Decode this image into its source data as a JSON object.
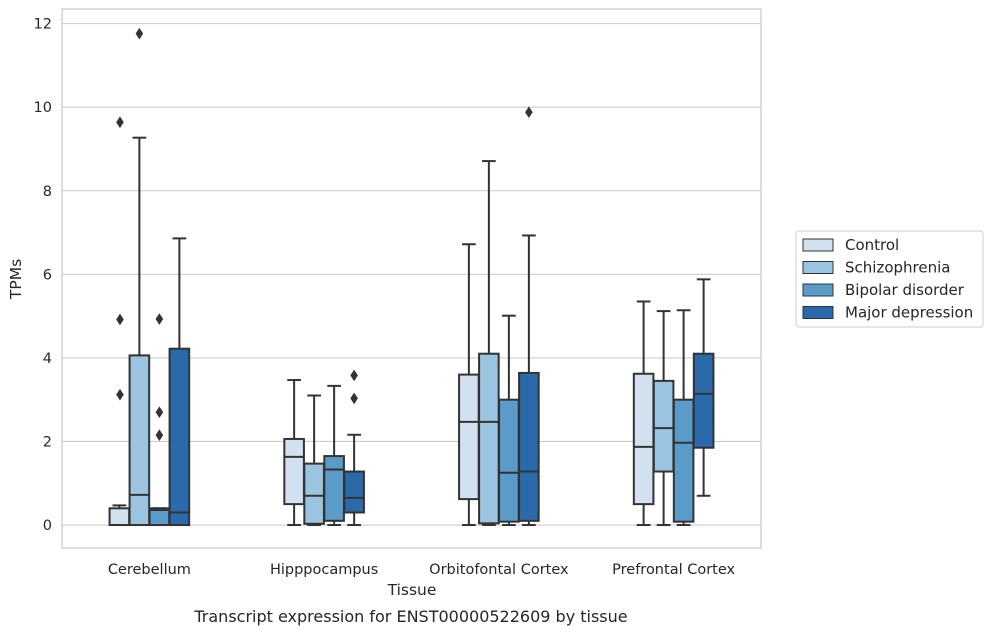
{
  "chart_data": {
    "type": "box",
    "xlabel": "Tissue",
    "ylabel": "TPMs",
    "caption": "Transcript expression for ENST00000522609 by tissue",
    "ylim": [
      -0.55,
      12.35
    ],
    "yticks": [
      0,
      2,
      4,
      6,
      8,
      10,
      12
    ],
    "categories": [
      "Cerebellum",
      "Hipppocampus",
      "Orbitofontal Cortex",
      "Prefrontal Cortex"
    ],
    "grid": "horizontal",
    "legend": {
      "position": "right",
      "frame": true
    },
    "series": [
      {
        "name": "Control",
        "color": "#d1e1f0",
        "boxes": [
          {
            "whisker_low": 0.0,
            "q1": 0.0,
            "median": 0.0,
            "q3": 0.4,
            "whisker_high": 0.47,
            "outliers": []
          },
          {
            "whisker_low": 0.0,
            "q1": 0.5,
            "median": 1.63,
            "q3": 2.06,
            "whisker_high": 3.47,
            "outliers": []
          },
          {
            "whisker_low": 0.0,
            "q1": 0.62,
            "median": 2.47,
            "q3": 3.6,
            "whisker_high": 6.72,
            "outliers": []
          },
          {
            "whisker_low": 0.0,
            "q1": 0.5,
            "median": 1.87,
            "q3": 3.62,
            "whisker_high": 5.35,
            "outliers": []
          }
        ]
      },
      {
        "name": "Schizophrenia",
        "color": "#9ac4df",
        "boxes": [
          {
            "whisker_low": 0.0,
            "q1": 0.0,
            "median": 0.72,
            "q3": 4.06,
            "whisker_high": 9.27,
            "outliers": [
              11.76
            ]
          },
          {
            "whisker_low": 0.0,
            "q1": 0.03,
            "median": 0.7,
            "q3": 1.47,
            "whisker_high": 3.1,
            "outliers": []
          },
          {
            "whisker_low": 0.0,
            "q1": 0.04,
            "median": 2.47,
            "q3": 4.1,
            "whisker_high": 8.71,
            "outliers": []
          },
          {
            "whisker_low": 0.0,
            "q1": 1.28,
            "median": 2.32,
            "q3": 3.45,
            "whisker_high": 5.12,
            "outliers": []
          }
        ]
      },
      {
        "name": "Bipolar disorder",
        "color": "#5b9bc9",
        "boxes": [
          {
            "whisker_low": 0.0,
            "q1": 0.0,
            "median": 0.36,
            "q3": 0.4,
            "whisker_high": 0.4,
            "outliers": [
              4.93,
              2.7,
              2.15
            ]
          },
          {
            "whisker_low": 0.0,
            "q1": 0.1,
            "median": 1.33,
            "q3": 1.65,
            "whisker_high": 3.33,
            "outliers": []
          },
          {
            "whisker_low": 0.0,
            "q1": 0.08,
            "median": 1.25,
            "q3": 3.0,
            "whisker_high": 5.01,
            "outliers": []
          },
          {
            "whisker_low": 0.0,
            "q1": 0.08,
            "median": 1.97,
            "q3": 3.0,
            "whisker_high": 5.14,
            "outliers": []
          }
        ]
      },
      {
        "name": "Major depression",
        "color": "#2a6aaa",
        "boxes": [
          {
            "whisker_low": 0.0,
            "q1": 0.0,
            "median": 0.3,
            "q3": 4.22,
            "whisker_high": 6.86,
            "outliers": []
          },
          {
            "whisker_low": 0.0,
            "q1": 0.3,
            "median": 0.65,
            "q3": 1.28,
            "whisker_high": 2.16,
            "outliers": [
              3.58,
              3.03
            ]
          },
          {
            "whisker_low": 0.0,
            "q1": 0.1,
            "median": 1.28,
            "q3": 3.64,
            "whisker_high": 6.93,
            "outliers": [
              9.88
            ]
          },
          {
            "whisker_low": 0.7,
            "q1": 1.85,
            "median": 3.14,
            "q3": 4.1,
            "whisker_high": 5.88,
            "outliers": []
          }
        ]
      }
    ],
    "extra_outliers": [
      {
        "category": "Cerebellum",
        "group": "Control",
        "values": [
          9.64,
          4.92,
          3.12
        ]
      }
    ]
  }
}
